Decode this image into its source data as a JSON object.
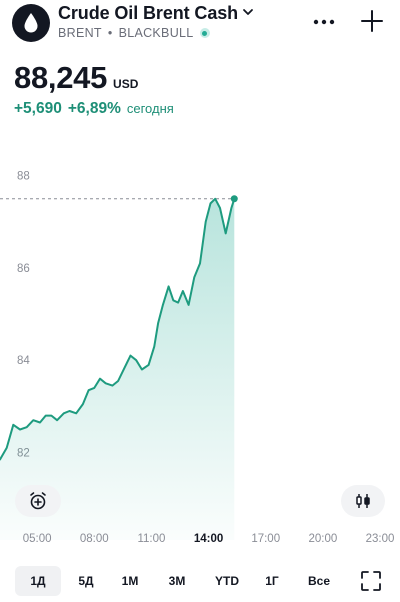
{
  "symbol": {
    "name": "Crude Oil Brent Cash",
    "ticker": "BRENT",
    "separator": "•",
    "exchange": "BLACKBULL"
  },
  "quote": {
    "price": "88,245",
    "currency": "USD",
    "change_abs": "+5,690",
    "change_pct": "+6,89%",
    "change_period": "сегодня"
  },
  "colors": {
    "accent": "#22ab94",
    "positive_text": "#1e8f77"
  },
  "icons": {
    "logo": "droplet-icon",
    "title_menu": "chevron-down-icon",
    "more": "more-dots-icon",
    "add": "plus-icon",
    "alert": "alarm-clock-add-icon",
    "compare": "candles-icon",
    "fullscreen": "fullscreen-icon"
  },
  "chart_data": {
    "type": "area",
    "y_ticks": [
      "82",
      "84",
      "86",
      "88"
    ],
    "ylim": [
      81.5,
      88.6
    ],
    "last_price": 88.245,
    "x_ticks": [
      "05:00",
      "08:00",
      "11:00",
      "14:00",
      "17:00",
      "20:00",
      "23:00"
    ],
    "active_tick": "14:00",
    "x_hours_range": [
      3.05,
      23.0
    ],
    "series": [
      {
        "x": [
          3.05,
          3.4,
          3.75,
          4.1,
          4.45,
          4.8,
          5.15,
          5.45,
          5.75,
          6.05,
          6.4,
          6.7,
          7.05,
          7.4,
          7.7,
          8.0,
          8.3,
          8.6,
          8.95,
          9.25,
          9.6,
          9.9,
          10.2,
          10.5,
          10.85,
          11.15,
          11.35,
          11.6,
          11.9,
          12.15,
          12.4,
          12.65,
          12.95,
          13.25,
          13.55,
          13.85,
          14.1,
          14.35,
          14.6,
          14.9,
          15.2,
          15.35
        ],
        "values": [
          81.85,
          82.1,
          82.6,
          82.5,
          82.55,
          82.7,
          82.65,
          82.8,
          82.8,
          82.7,
          82.85,
          82.9,
          82.85,
          83.05,
          83.35,
          83.4,
          83.6,
          83.5,
          83.45,
          83.55,
          83.85,
          84.1,
          84.0,
          83.8,
          83.9,
          84.3,
          84.8,
          85.2,
          85.6,
          85.3,
          85.25,
          85.5,
          85.2,
          85.8,
          86.1,
          87.0,
          87.4,
          87.5,
          87.3,
          86.75,
          87.3,
          87.5
        ]
      }
    ]
  },
  "timeframes": [
    "1Д",
    "5Д",
    "1М",
    "3М",
    "YTD",
    "1Г",
    "Все"
  ],
  "active_timeframe": "1Д"
}
